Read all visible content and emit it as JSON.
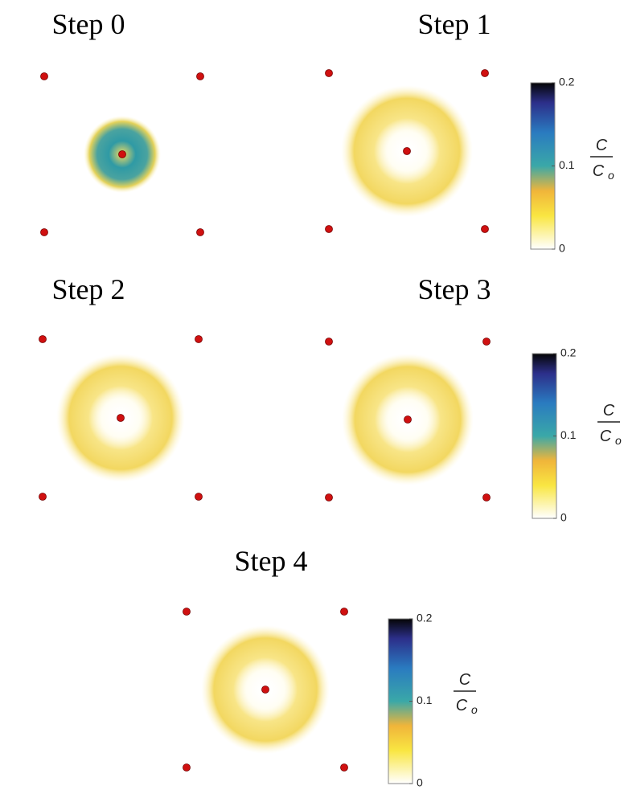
{
  "panels": [
    {
      "title": "Step 0"
    },
    {
      "title": "Step 1"
    },
    {
      "title": "Step 2"
    },
    {
      "title": "Step 3"
    },
    {
      "title": "Step 4"
    }
  ],
  "colorbars": [
    {
      "range": [
        0,
        0.2
      ],
      "ticks": [
        0,
        0.1,
        0.2
      ],
      "label": {
        "numerator": "C",
        "denominator": "C",
        "subscript": "o"
      }
    },
    {
      "range": [
        0,
        0.2
      ],
      "ticks": [
        0,
        0.1,
        0.2
      ],
      "label": {
        "numerator": "C",
        "denominator": "C",
        "subscript": "o"
      }
    },
    {
      "range": [
        0,
        0.2
      ],
      "ticks": [
        0,
        0.1,
        0.2
      ],
      "label": {
        "numerator": "C",
        "denominator": "C",
        "subscript": "o"
      }
    }
  ]
}
